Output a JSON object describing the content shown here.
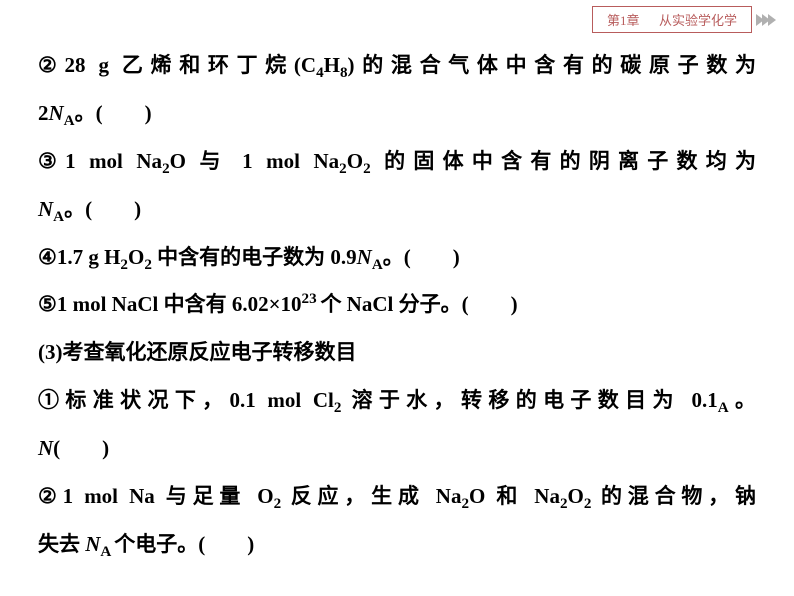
{
  "header": {
    "chapter_label": "第1章",
    "chapter_title": "从实验学化学",
    "chapter_color": "#b85c5c",
    "chevron_color": "#b0b0b0",
    "font_size": 13
  },
  "body": {
    "font_size": 21,
    "line_height": 2.28,
    "text_color": "#000000",
    "font_weight": "bold",
    "lines": [
      {
        "num": "②",
        "pre": "28 g 乙烯和环丁烷(C",
        "sub1": "4",
        "mid1": "H",
        "sub2": "8",
        "post": ")的混合气体中含有的碳原子数为",
        "spread": true,
        "break": true,
        "rest_pre": "2",
        "italic": "N",
        "rest_sub": "A",
        "rest_post": "。(　　)"
      },
      {
        "num": "③",
        "pre": "1 mol Na",
        "sub1": "2",
        "mid1": "O 与 1 mol Na",
        "sub2": "2",
        "mid2": "O",
        "sub3": "2",
        "post": " 的固体中含有的阴离子数均为",
        "spread": true,
        "break": true,
        "rest_pre": "",
        "italic": "N",
        "rest_sub": "A",
        "rest_post": "。(　　)"
      },
      {
        "num": "④",
        "pre": "1.7 g H",
        "sub1": "2",
        "mid1": "O",
        "sub2": "2",
        "post": " 中含有的电子数为 0.9",
        "italic": "N",
        "isub": "A",
        "tail": "。(　　)"
      },
      {
        "num": "⑤",
        "pre": "1 mol NaCl 中含有 6.02×10",
        "sup": "23 ",
        "post": "个 NaCl 分子。(　　)"
      },
      {
        "plain": "(3)考查氧化还原反应电子转移数目"
      },
      {
        "num": "①",
        "pre": "标准状况下，0.1 mol Cl",
        "sub1": "2 ",
        "post": "溶于水，转移的电子数目为 0.1",
        "italic": "N",
        "isub": "A",
        "tail": "。",
        "spread": true,
        "break": true,
        "rest_post2": "(　　)"
      },
      {
        "num": "②",
        "pre": "1 mol Na 与足量 O",
        "sub1": "2 ",
        "mid1": "反应，生成 Na",
        "sub2": "2",
        "mid2": "O 和 Na",
        "sub3": "2",
        "mid3": "O",
        "sub4": "2 ",
        "post": "的混合物，钠",
        "spread": true,
        "break": true,
        "rest_pre": "失去 ",
        "italic": "N",
        "rest_sub": "A ",
        "rest_post": "个电子。(　　)"
      }
    ]
  }
}
